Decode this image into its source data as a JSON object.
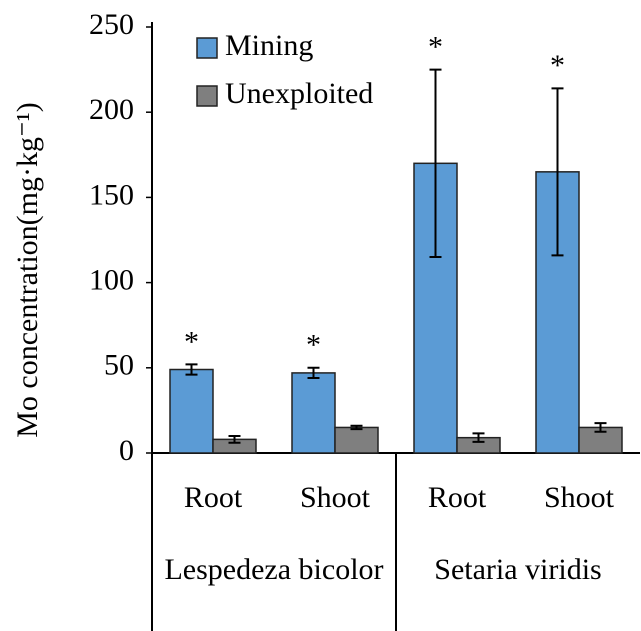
{
  "chart_data": {
    "type": "bar",
    "y_label": "Mo concentration(mg·kg⁻¹)",
    "groups": [
      {
        "name": "Lespedeza bicolor",
        "categories": [
          "Root",
          "Shoot"
        ]
      },
      {
        "name": "Setaria viridis",
        "categories": [
          "Root",
          "Shoot"
        ]
      }
    ],
    "series": [
      {
        "name": "Mining",
        "color": "#5b9bd5",
        "values": [
          49,
          47,
          170,
          165
        ],
        "errors": [
          3,
          3,
          55,
          49
        ],
        "annotations": [
          "*",
          "*",
          "*",
          "*"
        ]
      },
      {
        "name": "Unexploited",
        "color": "#7f7f7f",
        "values": [
          8,
          15,
          9,
          15
        ],
        "errors": [
          2,
          1,
          2.5,
          2.5
        ]
      }
    ],
    "ylim": [
      0,
      250
    ],
    "yticks": [
      0,
      50,
      100,
      150,
      200,
      250
    ],
    "grid": false,
    "legend": "top-left"
  }
}
